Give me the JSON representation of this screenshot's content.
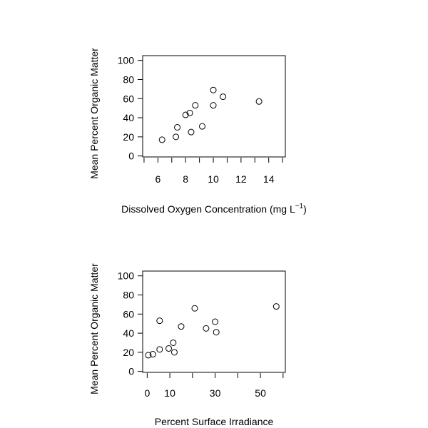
{
  "chart_data": [
    {
      "type": "scatter",
      "xlabel": "Dissolved Oxygen Concentration (mg L",
      "xlabel_superscript": "−1",
      "xlabel_suffix": ")",
      "ylabel": "Mean Percent Organic Matter",
      "xlim": [
        4.9,
        15.2
      ],
      "ylim": [
        -1,
        105
      ],
      "xticks": [
        6,
        8,
        10,
        12,
        14
      ],
      "xtick_labels": [
        "6",
        "8",
        "10",
        "12",
        "14"
      ],
      "xtick_minor": [
        5,
        7,
        9,
        11,
        13,
        15
      ],
      "yticks": [
        0,
        20,
        40,
        60,
        80,
        100
      ],
      "ytick_labels": [
        "0",
        "20",
        "40",
        "60",
        "80",
        "100"
      ],
      "grid": false,
      "marker": "open-circle",
      "points": [
        {
          "x": 6.3,
          "y": 17
        },
        {
          "x": 7.3,
          "y": 20
        },
        {
          "x": 7.4,
          "y": 30
        },
        {
          "x": 8.0,
          "y": 43
        },
        {
          "x": 8.3,
          "y": 45
        },
        {
          "x": 8.4,
          "y": 25
        },
        {
          "x": 8.7,
          "y": 53
        },
        {
          "x": 9.2,
          "y": 31
        },
        {
          "x": 10.0,
          "y": 69
        },
        {
          "x": 10.0,
          "y": 53
        },
        {
          "x": 10.7,
          "y": 62
        },
        {
          "x": 13.3,
          "y": 57
        }
      ]
    },
    {
      "type": "scatter",
      "xlabel": "Percent Surface Irradiance",
      "ylabel": "Mean Percent Organic Matter",
      "xlim": [
        -2,
        61
      ],
      "ylim": [
        -1,
        105
      ],
      "xticks": [
        0,
        10,
        30,
        50
      ],
      "xtick_labels": [
        "0",
        "10",
        "30",
        "50"
      ],
      "xtick_minor": [
        20,
        40,
        60
      ],
      "yticks": [
        0,
        20,
        40,
        60,
        80,
        100
      ],
      "ytick_labels": [
        "0",
        "20",
        "40",
        "60",
        "80",
        "100"
      ],
      "grid": false,
      "marker": "open-circle",
      "points": [
        {
          "x": 0.5,
          "y": 17
        },
        {
          "x": 2.5,
          "y": 18
        },
        {
          "x": 5.5,
          "y": 23
        },
        {
          "x": 5.5,
          "y": 53
        },
        {
          "x": 9.5,
          "y": 24
        },
        {
          "x": 11.5,
          "y": 30
        },
        {
          "x": 12.0,
          "y": 20
        },
        {
          "x": 15.0,
          "y": 47
        },
        {
          "x": 21.0,
          "y": 66
        },
        {
          "x": 26.0,
          "y": 45
        },
        {
          "x": 30.0,
          "y": 52
        },
        {
          "x": 30.5,
          "y": 41
        },
        {
          "x": 57.0,
          "y": 68
        }
      ]
    }
  ]
}
